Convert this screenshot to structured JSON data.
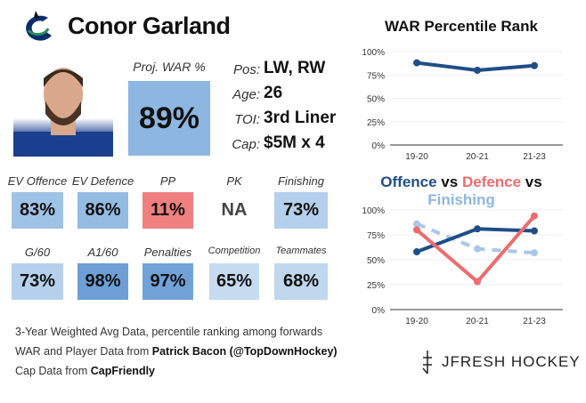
{
  "player": {
    "name": "Conor Garland",
    "proj_war_label": "Proj. WAR %",
    "proj_war": "89%",
    "info": [
      {
        "k": "Pos:",
        "v": "LW, RW"
      },
      {
        "k": "Age:",
        "v": "26"
      },
      {
        "k": "TOI:",
        "v": "3rd Liner"
      },
      {
        "k": "Cap:",
        "v": "$5M x 4"
      }
    ]
  },
  "tiles": [
    {
      "label": "EV Offence",
      "value": "83%",
      "color": "#9fc3e6"
    },
    {
      "label": "EV Defence",
      "value": "86%",
      "color": "#94bbe2"
    },
    {
      "label": "PP",
      "value": "11%",
      "color": "#f08080"
    },
    {
      "label": "PK",
      "value": "NA",
      "color": "#ffffff"
    },
    {
      "label": "Finishing",
      "value": "73%",
      "color": "#b5d0ec"
    },
    {
      "label": "G/60",
      "value": "73%",
      "color": "#b5d0ec"
    },
    {
      "label": "A1/60",
      "value": "98%",
      "color": "#6d9fd6"
    },
    {
      "label": "Penalties",
      "value": "97%",
      "color": "#70a2d8"
    },
    {
      "label": "Competition",
      "value": "65%",
      "color": "#c6dbf0"
    },
    {
      "label": "Teammates",
      "value": "68%",
      "color": "#c0d7ee"
    }
  ],
  "footer": {
    "line1": "3-Year Weighted Avg Data, percentile ranking among forwards",
    "line2_pre": "WAR and Player Data from ",
    "line2_bold": "Patrick Bacon (@TopDownHockey)",
    "line3_pre": "Cap Data from ",
    "line3_bold": "CapFriendly",
    "brand": "JFRESH HOCKEY"
  },
  "chart_data": [
    {
      "type": "line",
      "title": "WAR Percentile Rank",
      "categories": [
        "19-20",
        "20-21",
        "21-23"
      ],
      "ylim": [
        0,
        100
      ],
      "yticks": [
        "0%",
        "25%",
        "50%",
        "75%",
        "100%"
      ],
      "series": [
        {
          "values": [
            88,
            80,
            85
          ],
          "color": "#1f4e87"
        }
      ]
    },
    {
      "type": "line",
      "title_parts": [
        {
          "text": "Offence",
          "color": "#1f4e87"
        },
        {
          "text": " vs ",
          "color": "#111111"
        },
        {
          "text": "Defence",
          "color": "#ee6b6e"
        },
        {
          "text": " vs ",
          "color": "#111111"
        },
        {
          "text": "Finishing",
          "color": "#8db7e0"
        }
      ],
      "categories": [
        "19-20",
        "20-21",
        "21-23"
      ],
      "ylim": [
        0,
        100
      ],
      "yticks": [
        "0%",
        "25%",
        "50%",
        "75%",
        "100%"
      ],
      "series": [
        {
          "name": "Offence",
          "values": [
            58,
            81,
            79
          ],
          "color": "#1f4e87"
        },
        {
          "name": "Defence",
          "values": [
            80,
            28,
            94
          ],
          "color": "#ee6b6e"
        },
        {
          "name": "Finishing",
          "values": [
            86,
            61,
            57
          ],
          "color": "#a9c8e8",
          "dashed": true
        }
      ]
    }
  ]
}
